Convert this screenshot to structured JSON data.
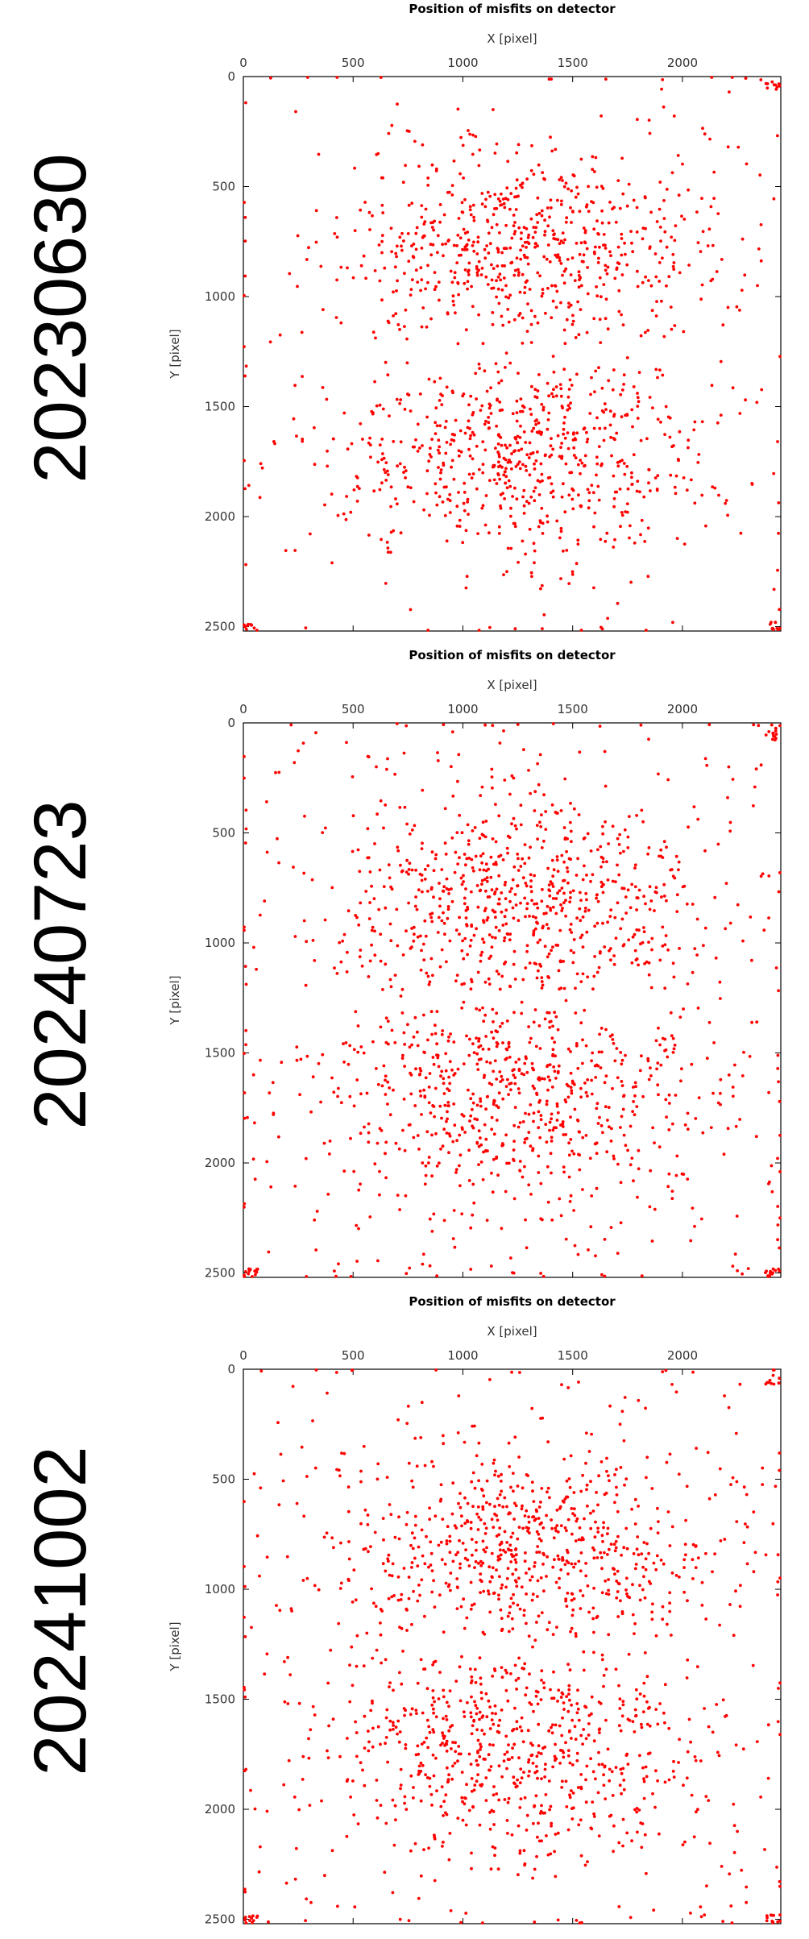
{
  "chart_data": [
    {
      "type": "scatter",
      "date_label": "20230630",
      "title": "Position of misfits on detector",
      "xlabel": "X [pixel]",
      "ylabel": "Y [pixel]",
      "xlim": [
        0,
        2448
      ],
      "ylim": [
        0,
        2520
      ],
      "y_inverted": true,
      "x_axis_position": "top",
      "x_ticks": [
        0,
        500,
        1000,
        1500,
        2000
      ],
      "y_ticks": [
        0,
        500,
        1000,
        1500,
        2000,
        2500
      ],
      "grid": false,
      "marker_color": "#ff0000",
      "seed": 11,
      "background_level": 0.7,
      "corner_level": 1.0,
      "points": [
        [
          1180,
          860
        ],
        [
          1300,
          720
        ],
        [
          1420,
          950
        ],
        [
          1050,
          640
        ],
        [
          1520,
          1620
        ],
        [
          1320,
          1710
        ],
        [
          1100,
          1580
        ],
        [
          980,
          1890
        ],
        [
          1200,
          2250
        ],
        [
          880,
          420
        ],
        [
          1650,
          780
        ],
        [
          1750,
          1980
        ]
      ]
    },
    {
      "type": "scatter",
      "date_label": "20240723",
      "title": "Position of misfits on detector",
      "xlabel": "X [pixel]",
      "ylabel": "Y [pixel]",
      "xlim": [
        0,
        2448
      ],
      "ylim": [
        0,
        2520
      ],
      "y_inverted": true,
      "x_axis_position": "top",
      "x_ticks": [
        0,
        500,
        1000,
        1500,
        2000
      ],
      "y_ticks": [
        0,
        500,
        1000,
        1500,
        2000,
        2500
      ],
      "grid": false,
      "marker_color": "#ff0000",
      "seed": 27,
      "background_level": 1.6,
      "corner_level": 1.4,
      "points": [
        [
          1150,
          1400
        ],
        [
          1170,
          1380
        ],
        [
          1320,
          880
        ],
        [
          1250,
          740
        ],
        [
          1480,
          1650
        ],
        [
          1080,
          1720
        ],
        [
          1010,
          980
        ],
        [
          1590,
          1500
        ],
        [
          1300,
          2100
        ],
        [
          2250,
          2490
        ],
        [
          2300,
          2480
        ]
      ]
    },
    {
      "type": "scatter",
      "date_label": "20241002",
      "title": "Position of misfits on detector",
      "xlabel": "X [pixel]",
      "ylabel": "Y [pixel]",
      "xlim": [
        0,
        2448
      ],
      "ylim": [
        0,
        2520
      ],
      "y_inverted": true,
      "x_axis_position": "top",
      "x_ticks": [
        0,
        500,
        1000,
        1500,
        2000
      ],
      "y_ticks": [
        0,
        500,
        1000,
        1500,
        2000,
        2500
      ],
      "grid": false,
      "marker_color": "#ff0000",
      "seed": 43,
      "background_level": 1.5,
      "corner_level": 1.2,
      "points": [
        [
          1180,
          1400
        ],
        [
          1200,
          1380
        ],
        [
          1240,
          820
        ],
        [
          1410,
          900
        ],
        [
          1310,
          1700
        ],
        [
          1050,
          1600
        ],
        [
          1000,
          2050
        ],
        [
          1520,
          1520
        ],
        [
          1260,
          2200
        ],
        [
          2100,
          2480
        ]
      ]
    }
  ]
}
